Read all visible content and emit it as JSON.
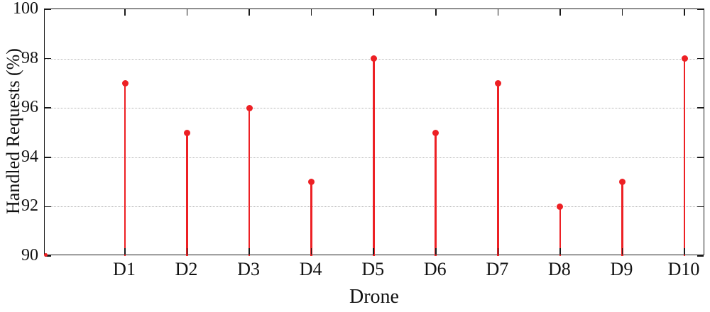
{
  "chart_data": {
    "type": "stem",
    "title": "",
    "xlabel": "Drone",
    "ylabel": "Handled Requests (%)",
    "categories": [
      "D1",
      "D2",
      "D3",
      "D4",
      "D5",
      "D6",
      "D7",
      "D8",
      "D9",
      "D10"
    ],
    "values": [
      97,
      95,
      96,
      93,
      98,
      95,
      97,
      92,
      93,
      98
    ],
    "ylim": [
      90,
      100
    ],
    "yticks": [
      90,
      92,
      94,
      96,
      98,
      100
    ],
    "grid": true,
    "legend": "none",
    "stem_color": "#ed2024",
    "marker_color": "#ed2024",
    "axis_color": "#1a1a1a",
    "grid_color": "#b3b3b3"
  }
}
